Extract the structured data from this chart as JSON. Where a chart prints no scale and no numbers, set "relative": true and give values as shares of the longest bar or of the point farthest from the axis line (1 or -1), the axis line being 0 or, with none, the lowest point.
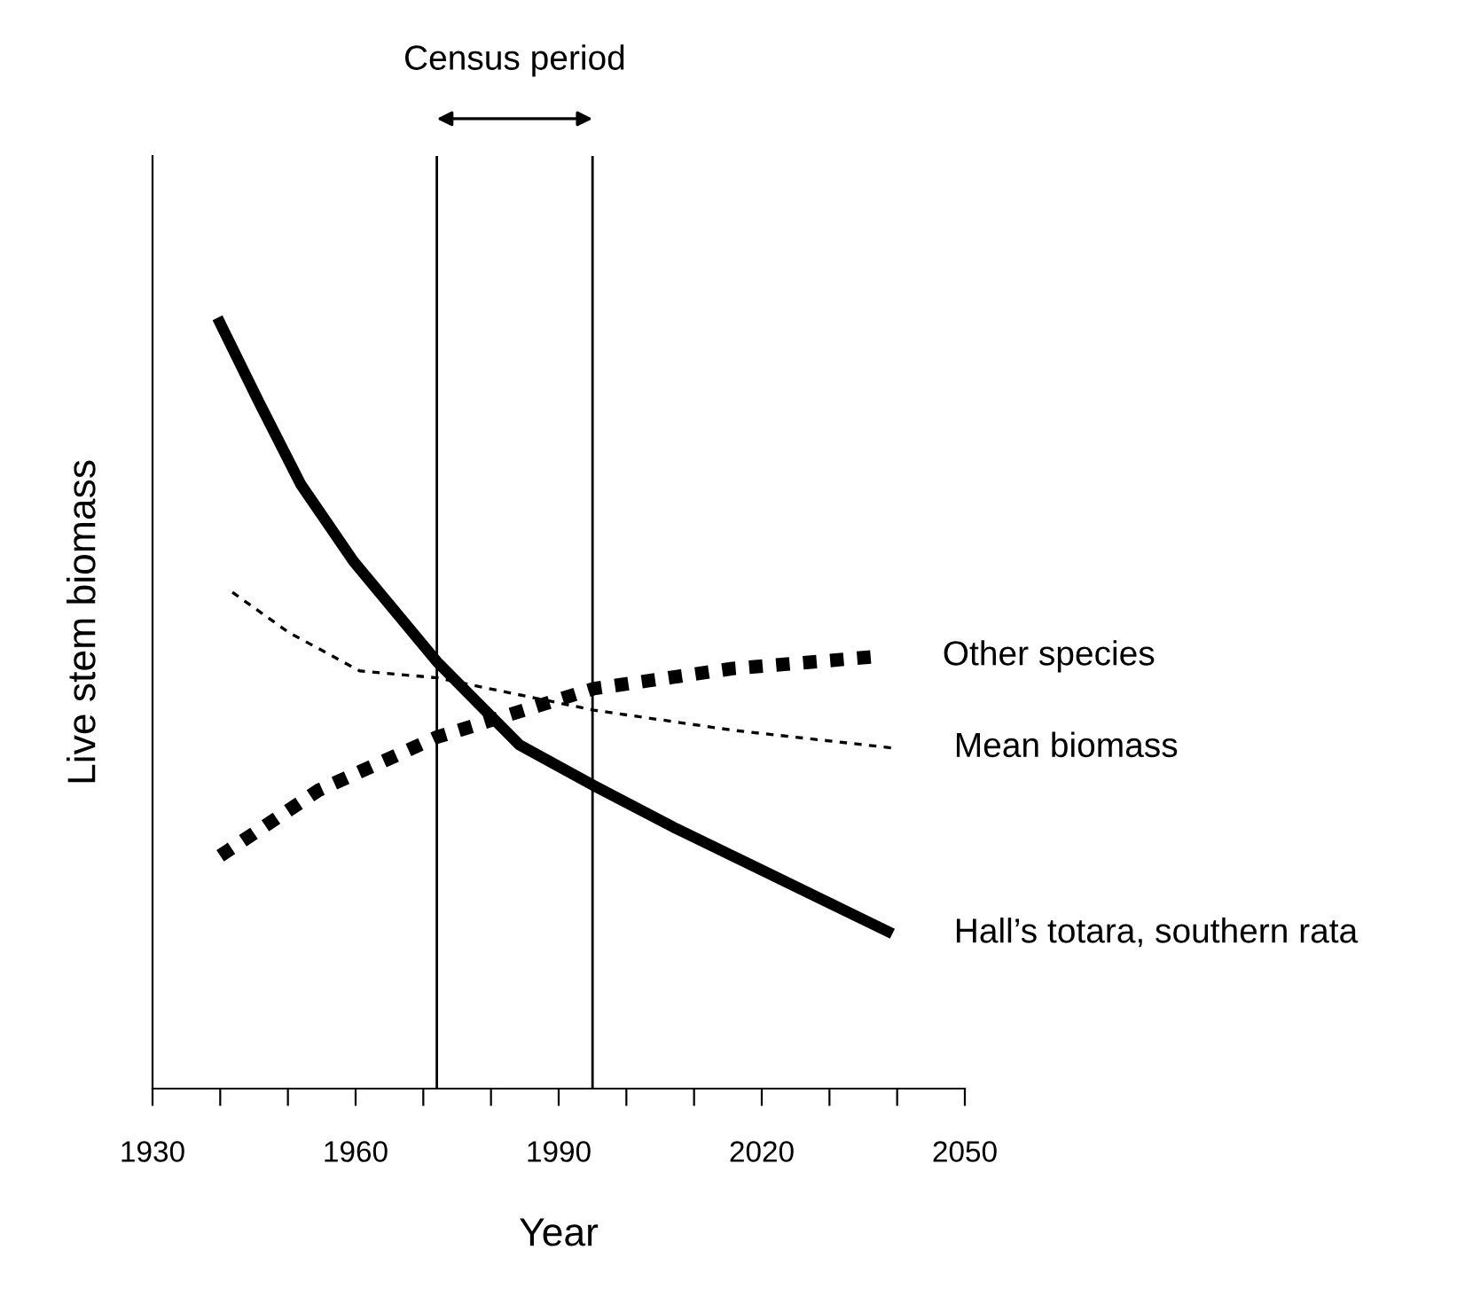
{
  "chart_data": {
    "type": "line",
    "relative": true,
    "xlabel": "Year",
    "ylabel": "Live stem biomass",
    "xlim": [
      1930,
      2050
    ],
    "xticks": [
      1930,
      {
        "value": 1940,
        "label": null
      },
      {
        "value": 1950,
        "label": null
      },
      1960,
      {
        "value": 1970,
        "label": null
      },
      {
        "value": 1980,
        "label": null
      },
      1990,
      {
        "value": 2000,
        "label": null
      },
      {
        "value": 2010,
        "label": null
      },
      2020,
      {
        "value": 2030,
        "label": null
      },
      {
        "value": 2040,
        "label": null
      },
      2050
    ],
    "series": [
      {
        "name": "Other species",
        "color": "#000000",
        "line_style": "dotted",
        "x": [
          1940,
          1954.5,
          1972,
          1995.2,
          2015.7,
          2037.6
        ],
        "values": [
          0.302,
          0.387,
          0.456,
          0.519,
          0.545,
          0.561
        ]
      },
      {
        "name": "Mean biomass",
        "color": "#000000",
        "line_style": "dashed",
        "x": [
          1941.8,
          1950.1,
          1960.6,
          1972,
          1995.2,
          2015.7,
          2039.3
        ],
        "values": [
          0.644,
          0.592,
          0.542,
          0.533,
          0.491,
          0.465,
          0.442
        ]
      },
      {
        "name": "Hall’s totara, southern rata",
        "color": "#000000",
        "line_style": "solid",
        "x": [
          1939.6,
          1945.7,
          1951.9,
          1959.7,
          1972,
          1984.2,
          1995.2,
          2007,
          2020.1,
          2039.3
        ],
        "values": [
          1.0,
          0.891,
          0.784,
          0.684,
          0.554,
          0.446,
          0.393,
          0.339,
          0.283,
          0.201
        ]
      }
    ],
    "ref_lines": [
      {
        "axis": "x",
        "value": 1972,
        "color": "#000000"
      },
      {
        "axis": "x",
        "value": 1995,
        "color": "#000000"
      }
    ],
    "annotations": [
      "Census period"
    ],
    "grid": false,
    "legend": false,
    "marker": "none"
  }
}
